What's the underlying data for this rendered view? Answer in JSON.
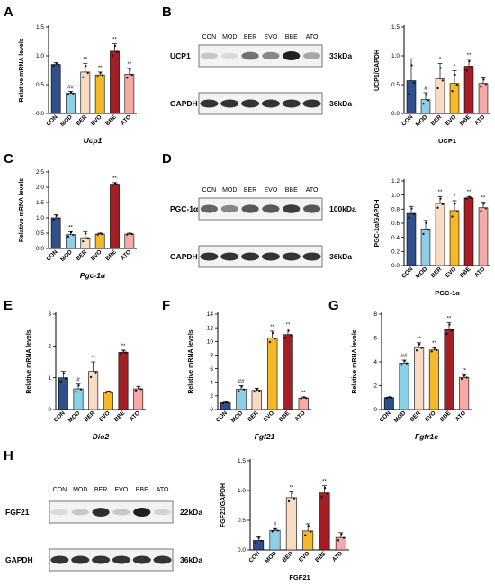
{
  "colors": {
    "CON": "#2e4f8c",
    "MOD": "#8dcfe6",
    "BER": "#f7dbc2",
    "EVO": "#f5b82a",
    "BBE": "#a31f24",
    "ATO": "#f7aaa5"
  },
  "panel_labels": [
    "A",
    "B",
    "C",
    "D",
    "E",
    "F",
    "G",
    "H"
  ],
  "blots": [
    {
      "panel": "B",
      "protein": "UCP1",
      "kda": "33kDa",
      "lanes": [
        "CON",
        "MOD",
        "BER",
        "EVO",
        "BBE",
        "ATO"
      ],
      "loading": {
        "protein": "GAPDH",
        "kda": "36kDa"
      }
    },
    {
      "panel": "D",
      "protein": "PGC-1α",
      "kda": "100kDa",
      "lanes": [
        "CON",
        "MOD",
        "BER",
        "EVO",
        "BBE",
        "ATO"
      ],
      "loading": {
        "protein": "GAPDH",
        "kda": "36kDa"
      }
    },
    {
      "panel": "H",
      "protein": "FGF21",
      "kda": "22kDa",
      "lanes": [
        "CON",
        "MOD",
        "BER",
        "EVO",
        "BBE",
        "ATO"
      ],
      "loading": {
        "protein": "GAPDH",
        "kda": "36kDa"
      }
    }
  ],
  "chart_data": [
    {
      "panel": "A",
      "type": "bar",
      "categories": [
        "CON",
        "MOD",
        "BER",
        "EVO",
        "BBE",
        "ATO"
      ],
      "values": [
        0.85,
        0.35,
        0.72,
        0.67,
        1.08,
        0.68
      ],
      "errors": [
        0.03,
        0.03,
        0.15,
        0.05,
        0.13,
        0.1
      ],
      "sig": [
        "",
        "##",
        "**",
        "**",
        "**",
        "**"
      ],
      "ylabel": "Relative mRNA levels",
      "xlabel": "Ucp1",
      "ylim": [
        0,
        1.5
      ],
      "yticks": [
        "0.0",
        "0.5",
        "1.0",
        "1.5"
      ]
    },
    {
      "panel": "B",
      "type": "bar",
      "categories": [
        "CON",
        "MOD",
        "BER",
        "EVO",
        "BBE",
        "ATO"
      ],
      "values": [
        0.57,
        0.24,
        0.6,
        0.52,
        0.82,
        0.52
      ],
      "errors": [
        0.38,
        0.12,
        0.27,
        0.22,
        0.12,
        0.1
      ],
      "sig": [
        "",
        "#",
        "*",
        "*",
        "**",
        ""
      ],
      "ylabel": "UCP1/GAPDH",
      "xlabel": "UCP1",
      "ylim": [
        0,
        1.5
      ],
      "yticks": [
        "0.0",
        "0.5",
        "1.0",
        "1.5"
      ]
    },
    {
      "panel": "C",
      "type": "bar",
      "categories": [
        "CON",
        "MOD",
        "BER",
        "EVO",
        "BBE",
        "ATO"
      ],
      "values": [
        1.0,
        0.45,
        0.35,
        0.47,
        2.1,
        0.47
      ],
      "errors": [
        0.1,
        0.1,
        0.2,
        0.03,
        0.05,
        0.03
      ],
      "sig": [
        "",
        "**",
        "",
        "",
        "**",
        ""
      ],
      "ylabel": "Relative mRNA levels",
      "xlabel": "Pgc-1α",
      "ylim": [
        0,
        2.5
      ],
      "yticks": [
        "0.0",
        "0.5",
        "1.0",
        "1.5",
        "2.0",
        "2.5"
      ]
    },
    {
      "panel": "D",
      "type": "bar",
      "categories": [
        "CON",
        "MOD",
        "BER",
        "EVO",
        "BBE",
        "ATO"
      ],
      "values": [
        0.74,
        0.52,
        0.88,
        0.78,
        0.96,
        0.82
      ],
      "errors": [
        0.1,
        0.12,
        0.1,
        0.14,
        0.02,
        0.08
      ],
      "sig": [
        "",
        "",
        "**",
        "*",
        "**",
        "**"
      ],
      "ylabel": "PGC-1α/GAPDH",
      "xlabel": "PGC-1α",
      "ylim": [
        0,
        1.2
      ],
      "yticks": [
        "0.0",
        "0.2",
        "0.4",
        "0.6",
        "0.8",
        "1.0",
        "1.2"
      ]
    },
    {
      "panel": "E",
      "type": "bar",
      "categories": [
        "CON",
        "MOD",
        "BER",
        "EVO",
        "BBE",
        "ATO"
      ],
      "values": [
        1.0,
        0.65,
        1.2,
        0.55,
        1.8,
        0.65
      ],
      "errors": [
        0.2,
        0.15,
        0.3,
        0.03,
        0.07,
        0.08
      ],
      "sig": [
        "",
        "#",
        "**",
        "",
        "**",
        ""
      ],
      "ylabel": "Relative mRNA levels",
      "xlabel": "Dio2",
      "ylim": [
        0,
        3
      ],
      "yticks": [
        "0",
        "1",
        "2",
        "3"
      ]
    },
    {
      "panel": "F",
      "type": "bar",
      "categories": [
        "CON",
        "MOD",
        "BER",
        "EVO",
        "BBE",
        "ATO"
      ],
      "values": [
        1.0,
        3.0,
        2.8,
        10.5,
        11.0,
        1.7
      ],
      "errors": [
        0.1,
        0.5,
        0.3,
        1.0,
        0.8,
        0.15
      ],
      "sig": [
        "",
        "##",
        "",
        "**",
        "**",
        "**"
      ],
      "ylabel": "Relative mRNA levels",
      "xlabel": "Fgf21",
      "ylim": [
        0,
        14
      ],
      "yticks": [
        "0",
        "2",
        "4",
        "6",
        "8",
        "10",
        "12",
        "14"
      ]
    },
    {
      "panel": "G",
      "type": "bar",
      "categories": [
        "CON",
        "MOD",
        "BER",
        "EVO",
        "BBE",
        "ATO"
      ],
      "values": [
        1.0,
        3.9,
        5.2,
        5.0,
        6.7,
        2.7
      ],
      "errors": [
        0.05,
        0.25,
        0.4,
        0.2,
        0.6,
        0.2
      ],
      "sig": [
        "",
        "##",
        "**",
        "**",
        "**",
        "**"
      ],
      "ylabel": "Relative mRNA levels",
      "xlabel": "Fgfr1c",
      "ylim": [
        0,
        8
      ],
      "yticks": [
        "0",
        "2",
        "4",
        "6",
        "8"
      ]
    },
    {
      "panel": "H",
      "type": "bar",
      "categories": [
        "CON",
        "MOD",
        "BER",
        "EVO",
        "BBE",
        "ATO"
      ],
      "values": [
        0.16,
        0.33,
        0.88,
        0.32,
        0.96,
        0.21
      ],
      "errors": [
        0.06,
        0.03,
        0.1,
        0.12,
        0.12,
        0.08
      ],
      "sig": [
        "",
        "#",
        "**",
        "",
        "**",
        ""
      ],
      "ylabel": "FGF21/GAPDH",
      "xlabel": "FGF21",
      "ylim": [
        0,
        1.5
      ],
      "yticks": [
        "0.0",
        "0.5",
        "1.0",
        "1.5"
      ]
    }
  ]
}
